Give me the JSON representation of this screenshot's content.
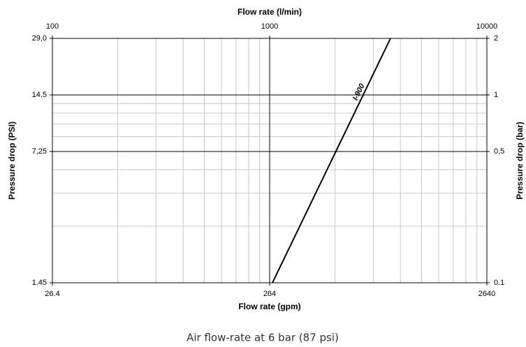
{
  "chart_data": {
    "type": "line",
    "title": "Air flow-rate at 6 bar (87 psi)",
    "x_label": "Flow rate (l/min)",
    "x2_label": "Flow rate (gpm)",
    "y_label": "Pressure drop (PSI)",
    "y2_label": "Pressure drop (bar)",
    "xscale": "log",
    "yscale": "log",
    "grid": true,
    "xlim": [
      100,
      10000
    ],
    "xticks": [
      100,
      1000,
      10000
    ],
    "x2lim": [
      26.4,
      2640
    ],
    "x2ticks": [
      26.4,
      264,
      2640
    ],
    "ylim": [
      1.45,
      29.0
    ],
    "yticks": [
      1.45,
      {
        "value": 7.25,
        "label": "7,25"
      },
      14.5,
      {
        "value": 29.0,
        "label": "29,0"
      }
    ],
    "y2lim": [
      0.1,
      2
    ],
    "y2ticks": [
      0.1,
      {
        "value": 0.5,
        "label": "0,5"
      },
      1,
      2
    ],
    "series": [
      {
        "name": "I-900",
        "color": "#000000",
        "axis": "y2",
        "x": [
          1030,
          3600
        ],
        "values": [
          0.1,
          2
        ]
      }
    ]
  }
}
